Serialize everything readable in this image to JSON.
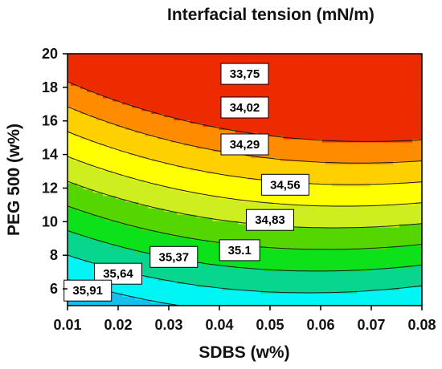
{
  "chart_data": {
    "type": "contour",
    "title": "Interfacial tension (mN/m)",
    "xlabel": "SDBS (w%)",
    "ylabel": "PEG 500 (w%)",
    "xlim": [
      0.01,
      0.08
    ],
    "ylim": [
      5,
      20
    ],
    "x_ticks": [
      "0.01",
      "0.02",
      "0.03",
      "0.04",
      "0.05",
      "0.06",
      "0.07",
      "0.08"
    ],
    "y_ticks": [
      "6",
      "8",
      "10",
      "12",
      "14",
      "16",
      "18",
      "20"
    ],
    "contour_levels": [
      {
        "value": 33.75,
        "label": "33,75",
        "label_at": [
          0.045,
          18.8
        ]
      },
      {
        "value": 34.02,
        "label": "34,02",
        "label_at": [
          0.045,
          16.8
        ]
      },
      {
        "value": 34.29,
        "label": "34,29",
        "label_at": [
          0.045,
          14.6
        ]
      },
      {
        "value": 34.56,
        "label": "34,56",
        "label_at": [
          0.053,
          12.2
        ]
      },
      {
        "value": 34.83,
        "label": "34,83",
        "label_at": [
          0.05,
          10.1
        ]
      },
      {
        "value": 35.1,
        "label": "35.1",
        "label_at": [
          0.044,
          8.3
        ]
      },
      {
        "value": 35.37,
        "label": "35,37",
        "label_at": [
          0.031,
          7.9
        ]
      },
      {
        "value": 35.64,
        "label": "35,64",
        "label_at": [
          0.02,
          6.9
        ]
      },
      {
        "value": 35.91,
        "label": "35,91",
        "label_at": [
          0.014,
          5.9
        ]
      }
    ],
    "fill_colors": [
      "#0033ff",
      "#0a7ff5",
      "#14bff2",
      "#00f5f5",
      "#09d68e",
      "#0ce11a",
      "#55d600",
      "#cfee20",
      "#ffff00",
      "#ffd000",
      "#ff8c00",
      "#ee2a00"
    ],
    "colorscale": "jet",
    "grid": false
  }
}
